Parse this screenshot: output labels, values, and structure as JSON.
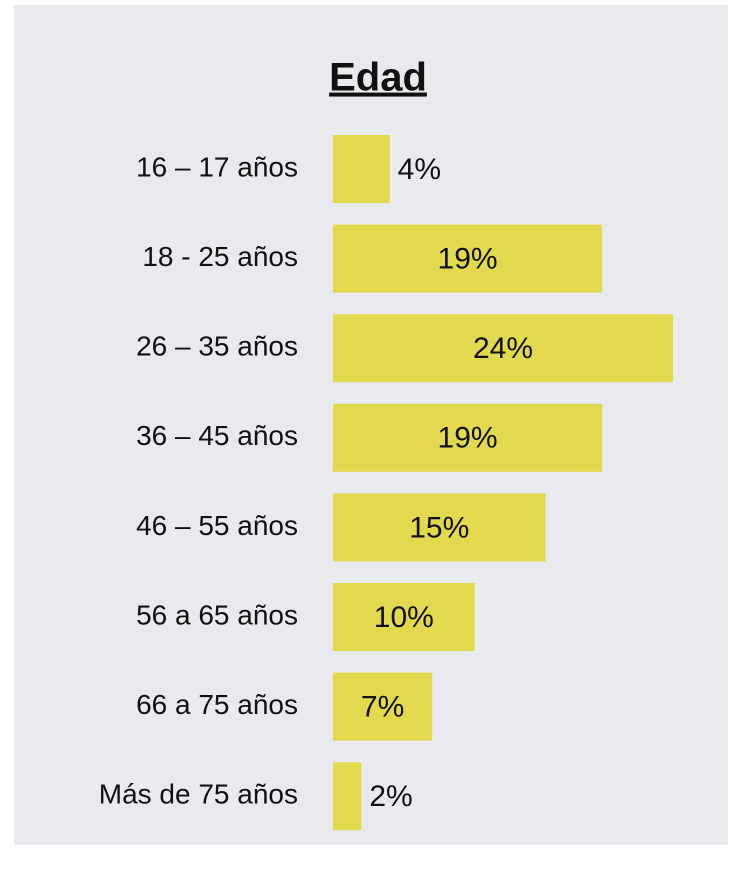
{
  "chart_data": {
    "type": "hbar",
    "title": "Edad",
    "categories": [
      "16 – 17 años",
      "18 - 25 años",
      "26 – 35 años",
      "36 – 45 años",
      "46 – 55 años",
      "56 a 65 años",
      "66 a 75 años",
      "Más de 75 años"
    ],
    "values": [
      4,
      19,
      24,
      19,
      15,
      10,
      7,
      2
    ],
    "value_labels": [
      "4%",
      "19%",
      "24%",
      "19%",
      "15%",
      "10%",
      "7%",
      "2%"
    ],
    "color": "#e2d94f"
  }
}
